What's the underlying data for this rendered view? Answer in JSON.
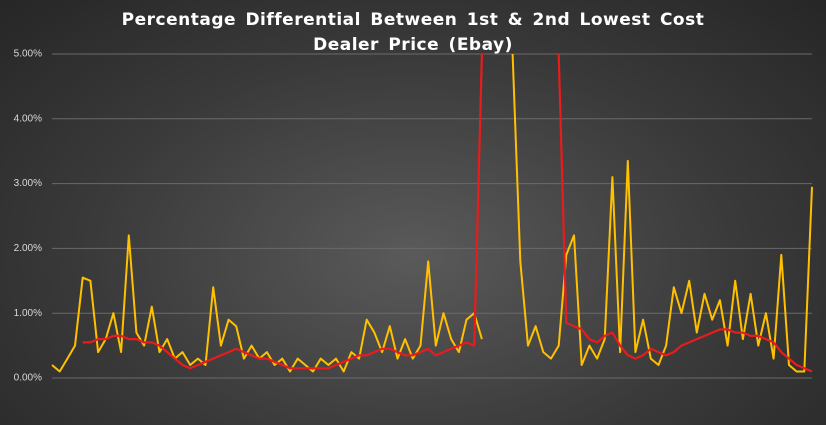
{
  "chart_data": {
    "type": "line",
    "title": "Percentage Differential Between 1st & 2nd Lowest Cost Dealer Price (Ebay)",
    "ylim": [
      0,
      5
    ],
    "yticks": [
      {
        "value": 0,
        "label": "0.00%"
      },
      {
        "value": 1,
        "label": "1.00%"
      },
      {
        "value": 2,
        "label": "2.00%"
      },
      {
        "value": 3,
        "label": "3.00%"
      },
      {
        "value": 4,
        "label": "4.00%"
      },
      {
        "value": 5,
        "label": "5.00%"
      }
    ],
    "grid": true,
    "series": [
      {
        "color": "#ffc000",
        "values": [
          0.2,
          0.1,
          0.3,
          0.5,
          1.55,
          1.5,
          0.4,
          0.6,
          1.0,
          0.4,
          2.2,
          0.7,
          0.5,
          1.1,
          0.4,
          0.6,
          0.3,
          0.4,
          0.2,
          0.3,
          0.2,
          1.4,
          0.5,
          0.9,
          0.8,
          0.3,
          0.5,
          0.3,
          0.4,
          0.2,
          0.3,
          0.1,
          0.3,
          0.2,
          0.1,
          0.3,
          0.2,
          0.3,
          0.1,
          0.4,
          0.3,
          0.9,
          0.7,
          0.4,
          0.8,
          0.3,
          0.6,
          0.3,
          0.5,
          1.8,
          0.5,
          1.0,
          0.6,
          0.4,
          0.9,
          1.0,
          0.6,
          null,
          null,
          null,
          5,
          1.8,
          0.5,
          0.8,
          0.4,
          0.3,
          0.5,
          1.9,
          2.2,
          0.2,
          0.5,
          0.3,
          0.6,
          3.1,
          0.4,
          3.35,
          0.4,
          0.9,
          0.3,
          0.2,
          0.5,
          1.4,
          1.0,
          1.5,
          0.7,
          1.3,
          0.9,
          1.2,
          0.5,
          1.5,
          0.6,
          1.3,
          0.5,
          1.0,
          0.3,
          1.9,
          0.2,
          0.1,
          0.1,
          2.95
        ]
      },
      {
        "color": "#e81c1c",
        "values": [
          null,
          null,
          null,
          null,
          0.55,
          0.55,
          0.6,
          0.6,
          0.65,
          0.65,
          0.6,
          0.6,
          0.55,
          0.55,
          0.5,
          0.4,
          0.3,
          0.2,
          0.15,
          0.2,
          0.25,
          0.3,
          0.35,
          0.4,
          0.45,
          0.4,
          0.35,
          0.3,
          0.3,
          0.25,
          0.2,
          0.15,
          0.15,
          0.15,
          0.15,
          0.15,
          0.15,
          0.2,
          0.25,
          0.3,
          0.35,
          0.35,
          0.4,
          0.45,
          0.45,
          0.4,
          0.35,
          0.35,
          0.4,
          0.45,
          0.35,
          0.4,
          0.45,
          0.5,
          0.55,
          0.5,
          5,
          null,
          null,
          null,
          null,
          null,
          null,
          null,
          null,
          null,
          5,
          0.85,
          0.8,
          0.75,
          0.6,
          0.55,
          0.65,
          0.7,
          0.5,
          0.35,
          0.3,
          0.35,
          0.45,
          0.4,
          0.35,
          0.4,
          0.5,
          0.55,
          0.6,
          0.65,
          0.7,
          0.75,
          0.75,
          0.7,
          0.7,
          0.65,
          0.65,
          0.6,
          0.55,
          0.4,
          0.3,
          0.2,
          0.15,
          0.1
        ]
      }
    ]
  }
}
